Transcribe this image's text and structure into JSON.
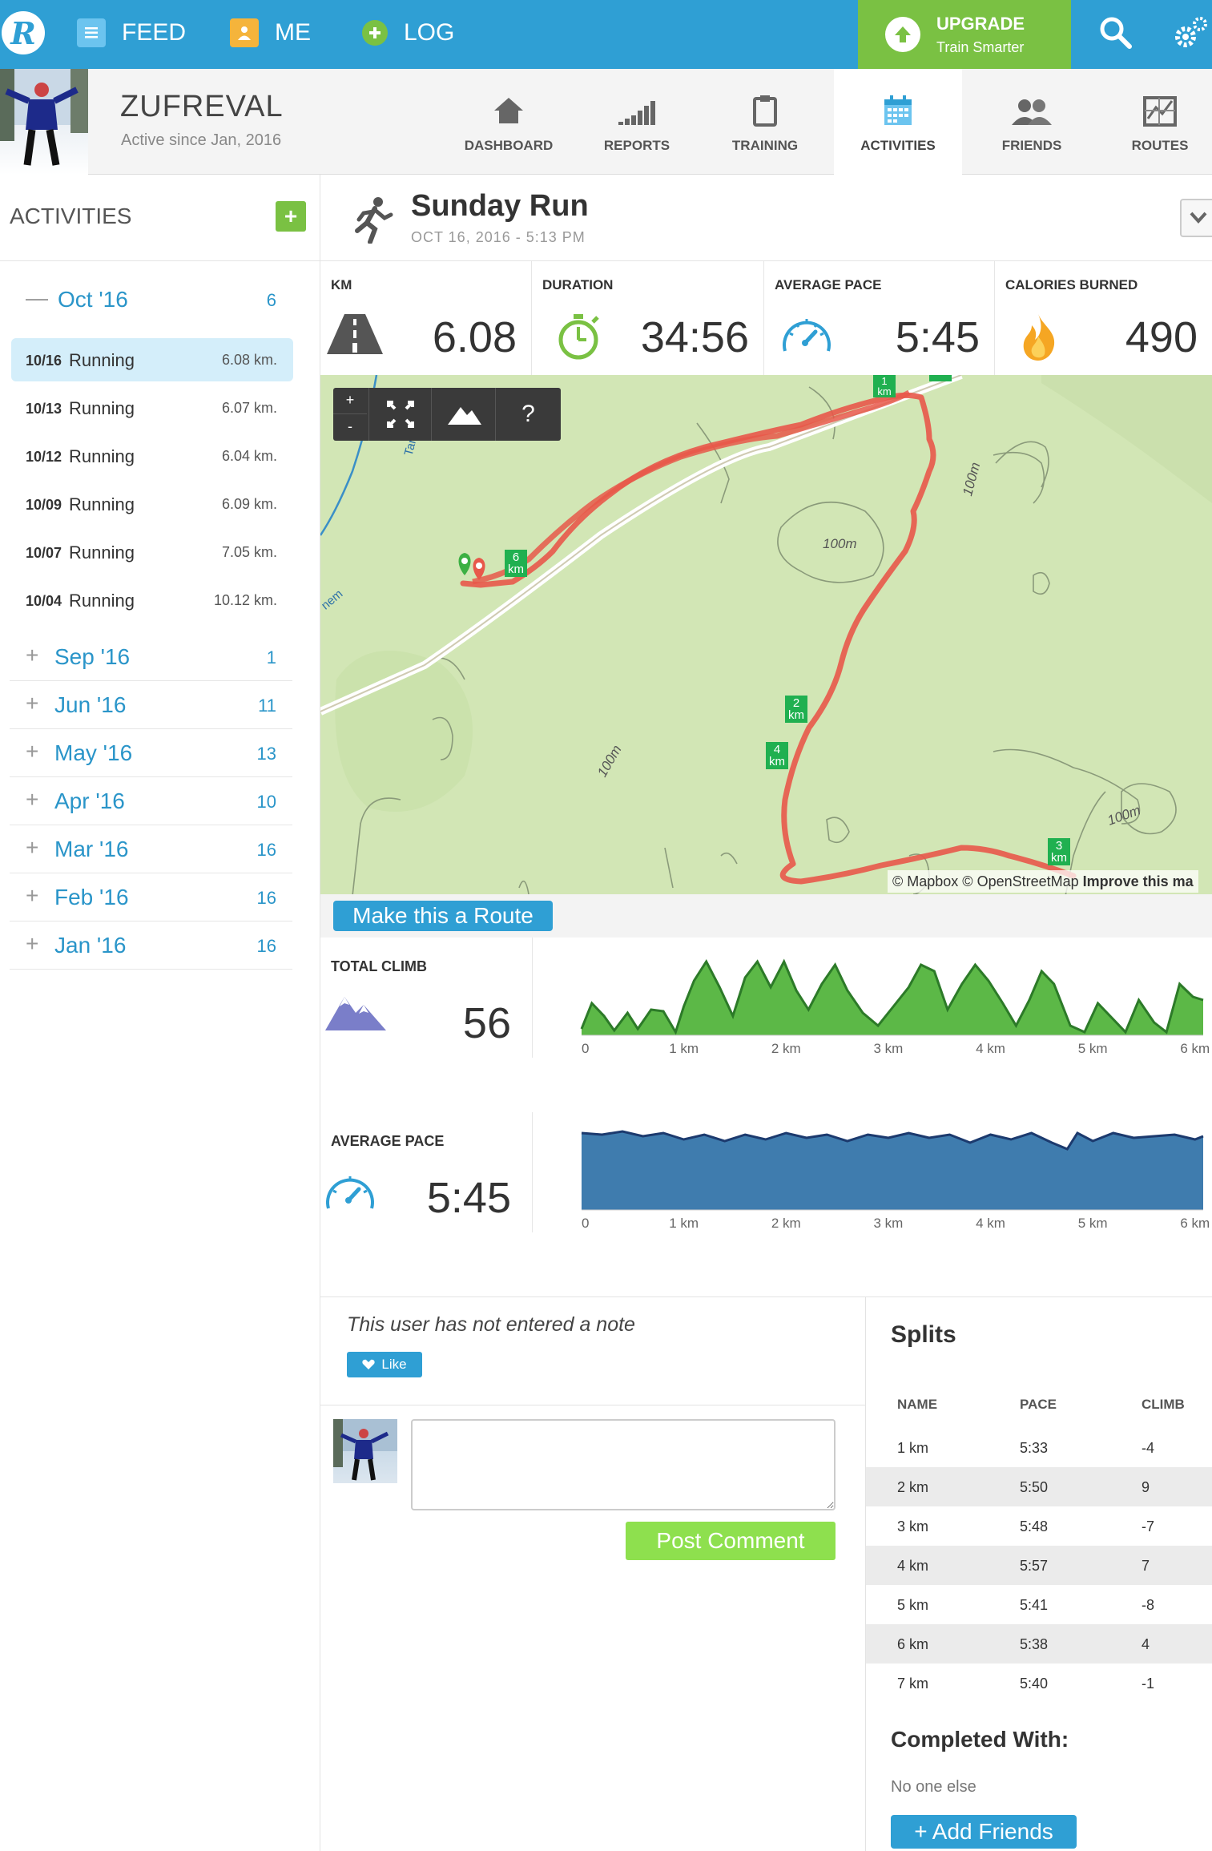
{
  "nav": {
    "feed": "FEED",
    "me": "ME",
    "log": "LOG",
    "upgrade_title": "UPGRADE",
    "upgrade_sub": "Train Smarter"
  },
  "profile": {
    "name": "ZUFREVAL",
    "since": "Active since Jan, 2016"
  },
  "tabs": [
    {
      "label": "DASHBOARD",
      "icon": "home-icon"
    },
    {
      "label": "REPORTS",
      "icon": "bar-chart-icon"
    },
    {
      "label": "TRAINING",
      "icon": "clipboard-icon"
    },
    {
      "label": "ACTIVITIES",
      "icon": "calendar-icon"
    },
    {
      "label": "FRIENDS",
      "icon": "friends-icon"
    },
    {
      "label": "ROUTES",
      "icon": "routes-map-icon"
    }
  ],
  "sidebar": {
    "title": "ACTIVITIES",
    "current_month": {
      "label": "Oct '16",
      "count": "6"
    },
    "activities": [
      {
        "date": "10/16",
        "name": "Running",
        "dist": "6.08 km."
      },
      {
        "date": "10/13",
        "name": "Running",
        "dist": "6.07 km."
      },
      {
        "date": "10/12",
        "name": "Running",
        "dist": "6.04 km."
      },
      {
        "date": "10/09",
        "name": "Running",
        "dist": "6.09 km."
      },
      {
        "date": "10/07",
        "name": "Running",
        "dist": "7.05 km."
      },
      {
        "date": "10/04",
        "name": "Running",
        "dist": "10.12 km."
      }
    ],
    "months": [
      {
        "label": "Sep '16",
        "count": "1"
      },
      {
        "label": "Jun '16",
        "count": "11"
      },
      {
        "label": "May '16",
        "count": "13"
      },
      {
        "label": "Apr '16",
        "count": "10"
      },
      {
        "label": "Mar '16",
        "count": "16"
      },
      {
        "label": "Feb '16",
        "count": "16"
      },
      {
        "label": "Jan '16",
        "count": "16"
      }
    ]
  },
  "activity": {
    "title": "Sunday Run",
    "date": "OCT 16, 2016  -  5:13 PM"
  },
  "stats": [
    {
      "label": "KM",
      "value": "6.08"
    },
    {
      "label": "DURATION",
      "value": "34:56"
    },
    {
      "label": "AVERAGE PACE",
      "value": "5:45"
    },
    {
      "label": "CALORIES BURNED",
      "value": "490"
    }
  ],
  "map": {
    "zoom_in": "+",
    "zoom_out": "-",
    "help": "?",
    "attribution_plain": "© Mapbox © OpenStreetMap",
    "attribution_bold": "Improve this ma",
    "contour_labels": [
      "100m",
      "100m",
      "100m",
      "100m"
    ],
    "road_labels": [
      "Tar",
      "nem"
    ],
    "km_markers": [
      {
        "num": "1",
        "unit": "km"
      },
      {
        "num": "2",
        "unit": "km"
      },
      {
        "num": "3",
        "unit": "km"
      },
      {
        "num": "4",
        "unit": "km"
      },
      {
        "num": "6",
        "unit": "km"
      }
    ]
  },
  "route_button": "Make this a Route",
  "chart_data": [
    {
      "type": "area",
      "title": "TOTAL CLIMB",
      "value_display": "56",
      "color": "#5cb847",
      "x_ticks": [
        "0",
        "1 km",
        "2 km",
        "3 km",
        "4 km",
        "5 km",
        "6 km"
      ],
      "xlim": [
        0,
        6.08
      ],
      "x": [
        0,
        0.1,
        0.22,
        0.32,
        0.45,
        0.55,
        0.68,
        0.8,
        0.92,
        1.0,
        1.1,
        1.22,
        1.35,
        1.48,
        1.6,
        1.72,
        1.85,
        1.98,
        2.1,
        2.22,
        2.35,
        2.48,
        2.6,
        2.75,
        2.9,
        3.05,
        3.2,
        3.32,
        3.45,
        3.58,
        3.72,
        3.85,
        3.98,
        4.12,
        4.25,
        4.38,
        4.5,
        4.62,
        4.78,
        4.92,
        5.05,
        5.2,
        5.32,
        5.45,
        5.6,
        5.72,
        5.85,
        5.98,
        6.08
      ],
      "y": [
        4,
        20,
        12,
        3,
        14,
        4,
        16,
        15,
        2,
        18,
        34,
        46,
        30,
        12,
        36,
        46,
        30,
        46,
        28,
        16,
        32,
        44,
        28,
        14,
        6,
        18,
        30,
        44,
        40,
        16,
        32,
        44,
        34,
        20,
        6,
        22,
        40,
        32,
        6,
        2,
        20,
        10,
        2,
        22,
        8,
        2,
        32,
        24,
        22
      ]
    },
    {
      "type": "area",
      "title": "AVERAGE PACE",
      "value_display": "5:45",
      "color": "#3f7cae",
      "x_ticks": [
        "0",
        "1 km",
        "2 km",
        "3 km",
        "4 km",
        "5 km",
        "6 km"
      ],
      "xlim": [
        0,
        6.08
      ],
      "x": [
        0,
        0.2,
        0.4,
        0.6,
        0.8,
        1.0,
        1.2,
        1.4,
        1.6,
        1.8,
        2.0,
        2.2,
        2.4,
        2.6,
        2.8,
        3.0,
        3.2,
        3.4,
        3.6,
        3.8,
        4.0,
        4.2,
        4.4,
        4.6,
        4.75,
        4.85,
        5.0,
        5.2,
        5.4,
        5.6,
        5.8,
        6.0,
        6.08
      ],
      "y": [
        48,
        47,
        49,
        46,
        48,
        44,
        47,
        43,
        47,
        44,
        48,
        45,
        47,
        43,
        47,
        45,
        48,
        45,
        47,
        42,
        47,
        44,
        48,
        42,
        38,
        48,
        43,
        48,
        45,
        46,
        47,
        44,
        46
      ]
    }
  ],
  "note": {
    "text": "This user has not entered a note",
    "like": "Like",
    "post": "Post Comment"
  },
  "splits": {
    "title": "Splits",
    "headers": [
      "NAME",
      "PACE",
      "CLIMB"
    ],
    "rows": [
      {
        "name": "1 km",
        "pace": "5:33",
        "climb": "-4"
      },
      {
        "name": "2 km",
        "pace": "5:50",
        "climb": "9"
      },
      {
        "name": "3 km",
        "pace": "5:48",
        "climb": "-7"
      },
      {
        "name": "4 km",
        "pace": "5:57",
        "climb": "7"
      },
      {
        "name": "5 km",
        "pace": "5:41",
        "climb": "-8"
      },
      {
        "name": "6 km",
        "pace": "5:38",
        "climb": "4"
      },
      {
        "name": "7 km",
        "pace": "5:40",
        "climb": "-1"
      }
    ],
    "completed_with": "Completed With:",
    "no_one": "No one else",
    "add_friends": "+ Add Friends"
  },
  "colors": {
    "brand_blue": "#2f9fd4",
    "brand_green": "#7ac143",
    "route_red": "#e8584a",
    "map_green": "#d2e6b5"
  }
}
